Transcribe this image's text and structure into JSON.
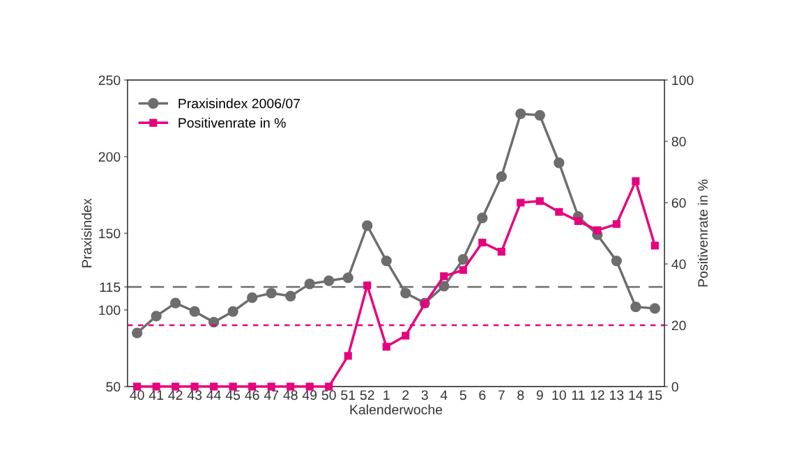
{
  "chart_data": {
    "type": "line",
    "xlabel": "Kalenderwoche",
    "ylabel": "Praxisindex",
    "y2label": "Positivenrate in %",
    "categories": [
      "40",
      "41",
      "42",
      "43",
      "44",
      "45",
      "46",
      "47",
      "48",
      "49",
      "50",
      "51",
      "52",
      "1",
      "2",
      "3",
      "4",
      "5",
      "6",
      "7",
      "8",
      "9",
      "10",
      "11",
      "12",
      "13",
      "14",
      "15"
    ],
    "series": [
      {
        "name": "Praxisindex 2006/07",
        "color": "#6d6d6d",
        "marker": "circle",
        "values": [
          85,
          96,
          104.5,
          99,
          92,
          99,
          108,
          111,
          109,
          117,
          119,
          121,
          155,
          132,
          111,
          104.5,
          115.5,
          133,
          160,
          187,
          228,
          227,
          196,
          161,
          149,
          132,
          102,
          101
        ]
      },
      {
        "name": "Positivenrate in %",
        "color": "#e6007e",
        "marker": "square",
        "axis": "y2",
        "values": [
          0,
          0,
          0,
          0,
          0,
          0,
          0,
          0,
          0,
          0,
          0,
          10,
          33,
          13,
          16.6,
          27,
          36,
          38,
          47,
          44,
          60,
          60.5,
          57,
          54,
          51,
          53,
          67,
          46
        ]
      }
    ],
    "ylim": [
      50,
      250
    ],
    "yticks": [
      50,
      100,
      115,
      150,
      200,
      250
    ],
    "y2lim": [
      0,
      100
    ],
    "y2ticks": [
      0,
      20,
      40,
      60,
      80,
      100
    ],
    "ref_lines": [
      {
        "axis": "y",
        "value": 115,
        "color": "#6d6d6d",
        "line_style": "dashed"
      },
      {
        "axis": "y2",
        "value": 20,
        "color": "#e6007e",
        "line_style": "dotted"
      }
    ],
    "legend": "top left",
    "grid": false,
    "line_style": "solid"
  }
}
